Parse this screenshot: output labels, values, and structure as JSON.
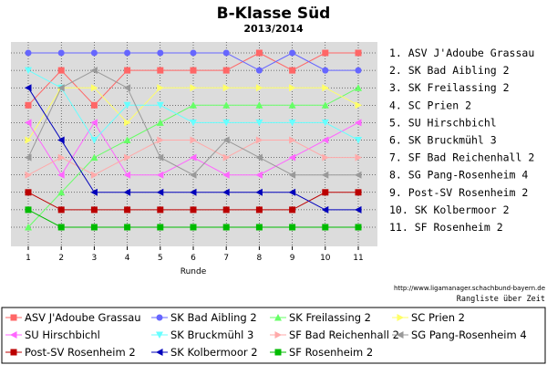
{
  "chart_data": {
    "type": "line",
    "title": "B-Klasse Süd",
    "subtitle": "2013/2014",
    "xlabel": "Runde",
    "x": [
      1,
      2,
      3,
      4,
      5,
      6,
      7,
      8,
      9,
      10,
      11
    ],
    "ylim": [
      1,
      11
    ],
    "y_inverted": true,
    "grid": true,
    "right_labels": [
      "1.  ASV J'Adoube Grassau",
      "2.  SK Bad Aibling 2",
      "3.  SK Freilassing 2",
      "4.  SC Prien 2",
      "5.  SU Hirschbichl",
      "6.  SK Bruckmühl 3",
      "7.  SF Bad Reichenhall 2",
      "8.  SG Pang-Rosenheim 4",
      "9.  Post-SV Rosenheim 2",
      "10. SK Kolbermoor 2",
      "11. SF Rosenheim 2"
    ],
    "source_url": "http://www.ligamanager.schachbund-bayern.de",
    "source_caption": "Rangliste über Zeit",
    "legend_position": "bottom",
    "series": [
      {
        "name": "ASV J'Adoube Grassau",
        "color": "#ff6666",
        "marker": "square",
        "values": [
          4,
          2,
          4,
          2,
          2,
          2,
          2,
          1,
          2,
          1,
          1
        ]
      },
      {
        "name": "SK Bad Aibling 2",
        "color": "#6666ff",
        "marker": "circle",
        "values": [
          1,
          1,
          1,
          1,
          1,
          1,
          1,
          2,
          1,
          2,
          2
        ]
      },
      {
        "name": "SK Freilassing 2",
        "color": "#66ff66",
        "marker": "triangle-up",
        "values": [
          11,
          9,
          7,
          6,
          5,
          4,
          4,
          4,
          4,
          4,
          3
        ]
      },
      {
        "name": "SC Prien 2",
        "color": "#ffff66",
        "marker": "triangle-right",
        "values": [
          6,
          3,
          3,
          5,
          3,
          3,
          3,
          3,
          3,
          3,
          4
        ]
      },
      {
        "name": "SU Hirschbichl",
        "color": "#ff66ff",
        "marker": "triangle-left",
        "values": [
          5,
          8,
          5,
          8,
          8,
          7,
          8,
          8,
          7,
          6,
          5
        ]
      },
      {
        "name": "SK Bruckmühl 3",
        "color": "#66ffff",
        "marker": "triangle-down",
        "values": [
          2,
          3,
          6,
          4,
          4,
          5,
          5,
          5,
          5,
          5,
          6
        ]
      },
      {
        "name": "SF Bad Reichenhall 2",
        "color": "#ffaaaa",
        "marker": "triangle-right",
        "values": [
          8,
          7,
          8,
          7,
          6,
          6,
          7,
          6,
          6,
          7,
          7
        ]
      },
      {
        "name": "SG Pang-Rosenheim 4",
        "color": "#999999",
        "marker": "triangle-left",
        "values": [
          7,
          3,
          2,
          3,
          7,
          8,
          6,
          7,
          8,
          8,
          8
        ]
      },
      {
        "name": "Post-SV Rosenheim 2",
        "color": "#bb0000",
        "marker": "square",
        "values": [
          9,
          10,
          10,
          10,
          10,
          10,
          10,
          10,
          10,
          9,
          9
        ]
      },
      {
        "name": "SK Kolbermoor 2",
        "color": "#0000bb",
        "marker": "triangle-left",
        "values": [
          3,
          6,
          9,
          9,
          9,
          9,
          9,
          9,
          9,
          10,
          10
        ]
      },
      {
        "name": "SF Rosenheim 2",
        "color": "#00bb00",
        "marker": "square",
        "values": [
          10,
          11,
          11,
          11,
          11,
          11,
          11,
          11,
          11,
          11,
          11
        ]
      }
    ]
  }
}
